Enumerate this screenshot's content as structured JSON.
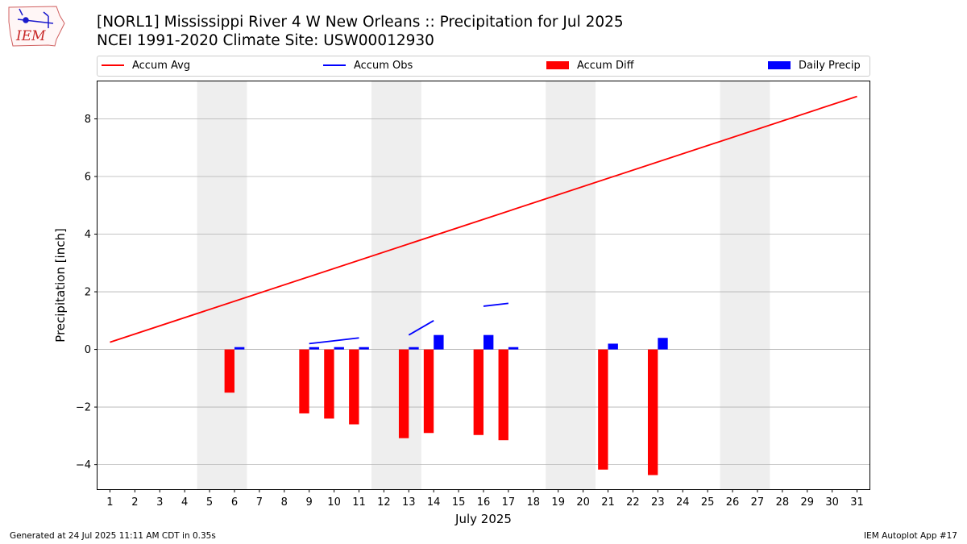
{
  "header": {
    "title_line1": "[NORL1] Mississippi River 4 W New Orleans :: Precipitation for Jul 2025",
    "title_line2": "NCEI 1991-2020 Climate Site: USW00012930",
    "logo_text": "IEM"
  },
  "legend": {
    "items": [
      {
        "label": "Accum Avg",
        "kind": "line",
        "color": "#ff0000"
      },
      {
        "label": "Accum Obs",
        "kind": "line",
        "color": "#0000ff"
      },
      {
        "label": "Accum Diff",
        "kind": "patch",
        "color": "#ff0000"
      },
      {
        "label": "Daily Precip",
        "kind": "patch",
        "color": "#0000ff"
      }
    ]
  },
  "footer": {
    "generated": "Generated at 24 Jul 2025 11:11 AM CDT in 0.35s",
    "app": "IEM Autoplot App #17"
  },
  "chart_data": {
    "type": "bar",
    "title": "[NORL1] Mississippi River 4 W New Orleans :: Precipitation for Jul 2025",
    "subtitle": "NCEI 1991-2020 Climate Site: USW00012930",
    "xlabel": "July 2025",
    "ylabel": "Precipitation [inch]",
    "xlim": [
      0.5,
      31.5
    ],
    "ylim": [
      -4.85,
      9.3
    ],
    "yticks": [
      -4,
      -2,
      0,
      2,
      4,
      6,
      8
    ],
    "ytick_labels": [
      "−4",
      "−2",
      "0",
      "2",
      "4",
      "6",
      "8"
    ],
    "xticks": [
      1,
      2,
      3,
      4,
      5,
      6,
      7,
      8,
      9,
      10,
      11,
      12,
      13,
      14,
      15,
      16,
      17,
      18,
      19,
      20,
      21,
      22,
      23,
      24,
      25,
      26,
      27,
      28,
      29,
      30,
      31
    ],
    "grid": "horizontal",
    "weekend_shading": [
      [
        4.5,
        6.5
      ],
      [
        11.5,
        13.5
      ],
      [
        18.5,
        20.5
      ],
      [
        25.5,
        27.5
      ]
    ],
    "colors": {
      "avg": "#ff0000",
      "obs": "#0000ff",
      "diff": "#ff0000",
      "daily": "#0000ff",
      "weekend": "#eeeeee",
      "grid": "#b0b0b0"
    },
    "series": [
      {
        "name": "Accum Avg",
        "type": "line",
        "color": "#ff0000",
        "x": [
          1,
          31
        ],
        "values": [
          0.25,
          8.78
        ]
      },
      {
        "name": "Accum Obs",
        "type": "line-segments",
        "color": "#0000ff",
        "segments": [
          {
            "x": [
              9,
              10,
              11
            ],
            "values": [
              0.2,
              0.3,
              0.4
            ]
          },
          {
            "x": [
              13,
              14
            ],
            "values": [
              0.5,
              1.0
            ]
          },
          {
            "x": [
              16,
              17
            ],
            "values": [
              1.5,
              1.6
            ]
          }
        ]
      },
      {
        "name": "Accum Diff",
        "type": "bar",
        "color": "#ff0000",
        "x": [
          6,
          9,
          10,
          11,
          13,
          14,
          16,
          17,
          21,
          23
        ],
        "values": [
          -1.5,
          -2.22,
          -2.4,
          -2.6,
          -3.08,
          -2.9,
          -2.97,
          -3.15,
          -4.17,
          -4.36
        ]
      },
      {
        "name": "Daily Precip",
        "type": "bar",
        "color": "#0000ff",
        "x": [
          6,
          9,
          10,
          11,
          13,
          14,
          16,
          17,
          21,
          23
        ],
        "values": [
          0.08,
          0.08,
          0.08,
          0.08,
          0.08,
          0.5,
          0.5,
          0.08,
          0.2,
          0.4
        ]
      }
    ]
  }
}
